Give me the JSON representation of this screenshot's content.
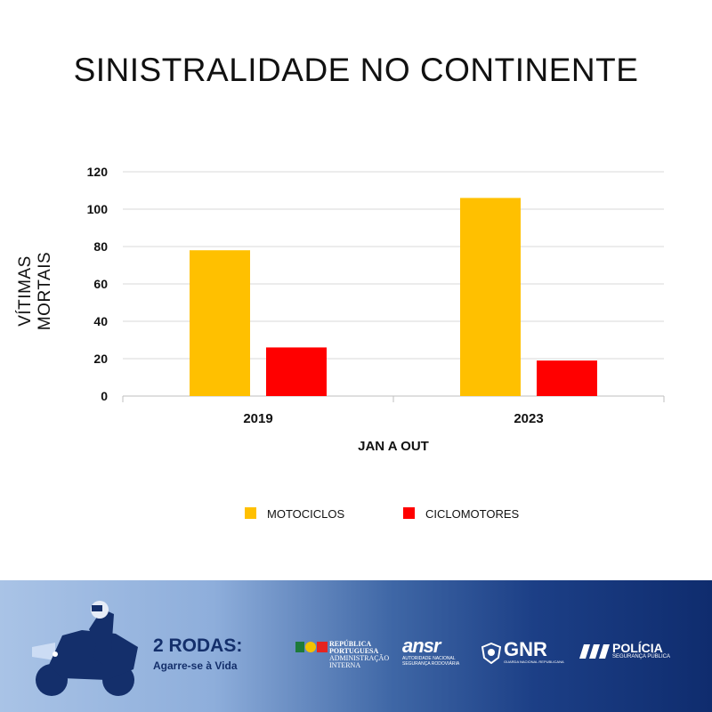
{
  "title": "SINISTRALIDADE NO CONTINENTE",
  "chart_data": {
    "type": "bar",
    "title": "SINISTRALIDADE NO CONTINENTE",
    "xlabel": "JAN A OUT",
    "ylabel": "VÍTIMAS MORTAIS",
    "categories": [
      "2019",
      "2023"
    ],
    "series": [
      {
        "name": "MOTOCICLOS",
        "color": "#FFC000",
        "values": [
          78,
          106
        ]
      },
      {
        "name": "CICLOMOTORES",
        "color": "#FF0000",
        "values": [
          26,
          19
        ]
      }
    ],
    "ylim": [
      0,
      120
    ],
    "yticks": [
      "0",
      "20",
      "40",
      "60",
      "80",
      "100",
      "120"
    ],
    "grid": true,
    "legend": "bottom"
  },
  "footer": {
    "campaign_title": "2 RODAS:",
    "campaign_subtitle": "Agarre-se à Vida",
    "logos": {
      "republica": [
        "REPÚBLICA",
        "PORTUGUESA",
        "ADMINISTRAÇÃO",
        "INTERNA"
      ],
      "ansr": {
        "name": "ansr",
        "sub1": "AUTORIDADE NACIONAL",
        "sub2": "SEGURANÇA RODOVIÁRIA"
      },
      "gnr": {
        "name": "GNR",
        "sub": "GUARDA NACIONAL REPUBLICANA"
      },
      "policia": {
        "name": "POLÍCIA",
        "sub": "SEGURANÇA PÚBLICA"
      }
    }
  }
}
